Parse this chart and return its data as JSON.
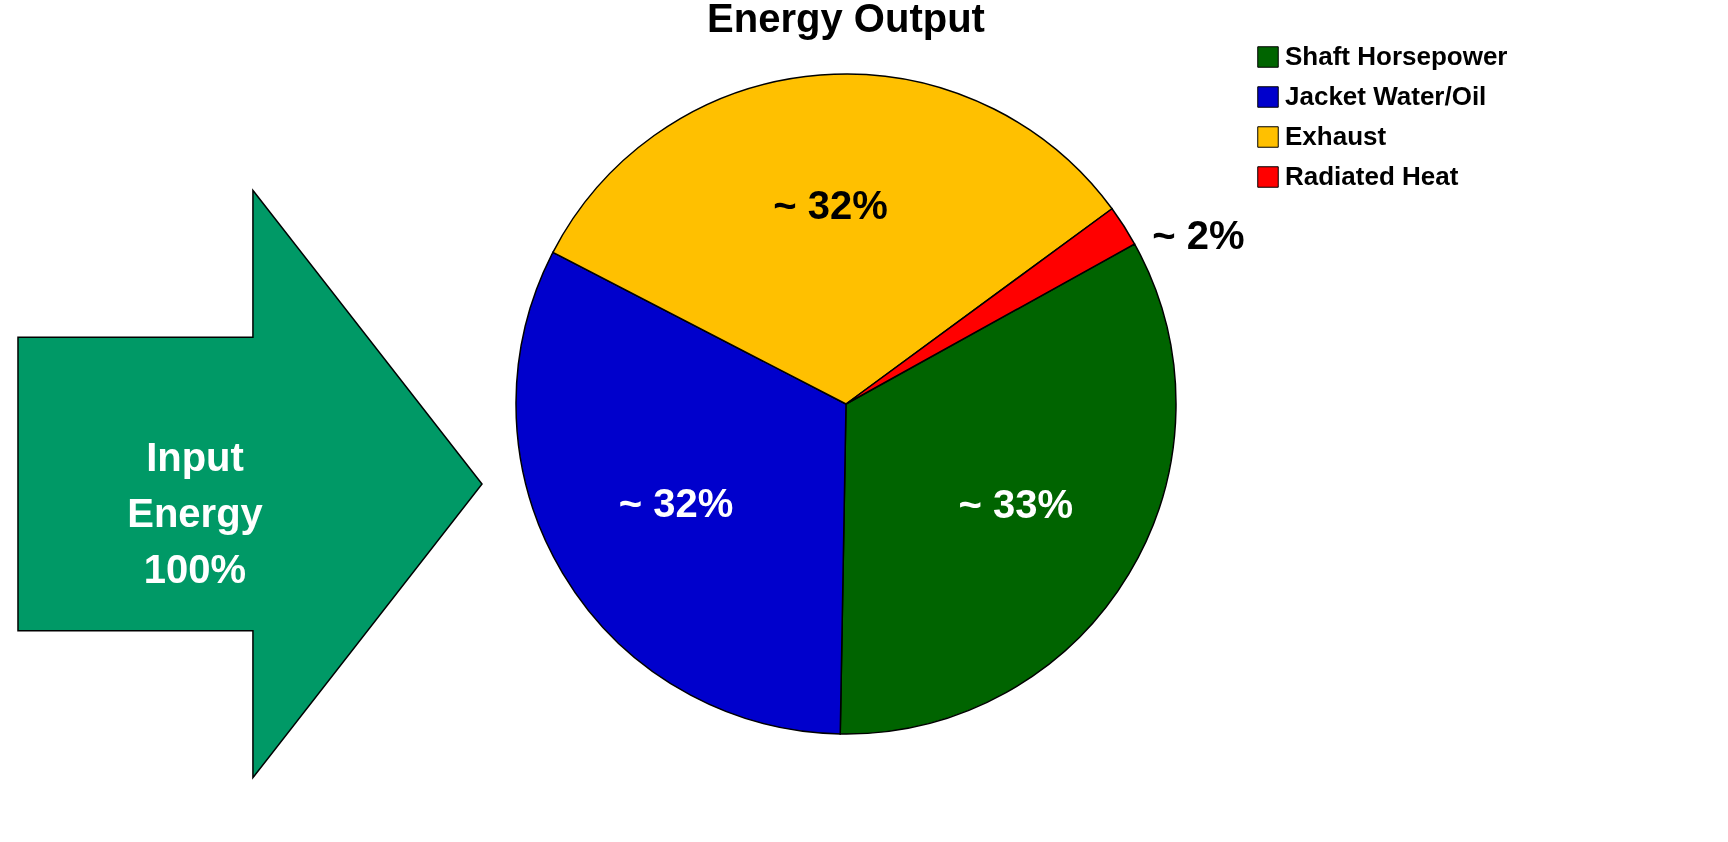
{
  "chart_data": {
    "type": "pie",
    "title": "Energy Output",
    "categories": [
      "Shaft Horsepower",
      "Jacket Water/Oil",
      "Exhaust",
      "Radiated Heat"
    ],
    "values": [
      33,
      32,
      32,
      2
    ],
    "colors": [
      "#006400",
      "#0000cc",
      "#ffc000",
      "#ff0000"
    ],
    "value_labels": [
      "~ 33%",
      "~ 32%",
      "~ 32%",
      "~ 2%"
    ],
    "legend": "right",
    "annotations": [
      "Input Energy 100%"
    ]
  }
}
